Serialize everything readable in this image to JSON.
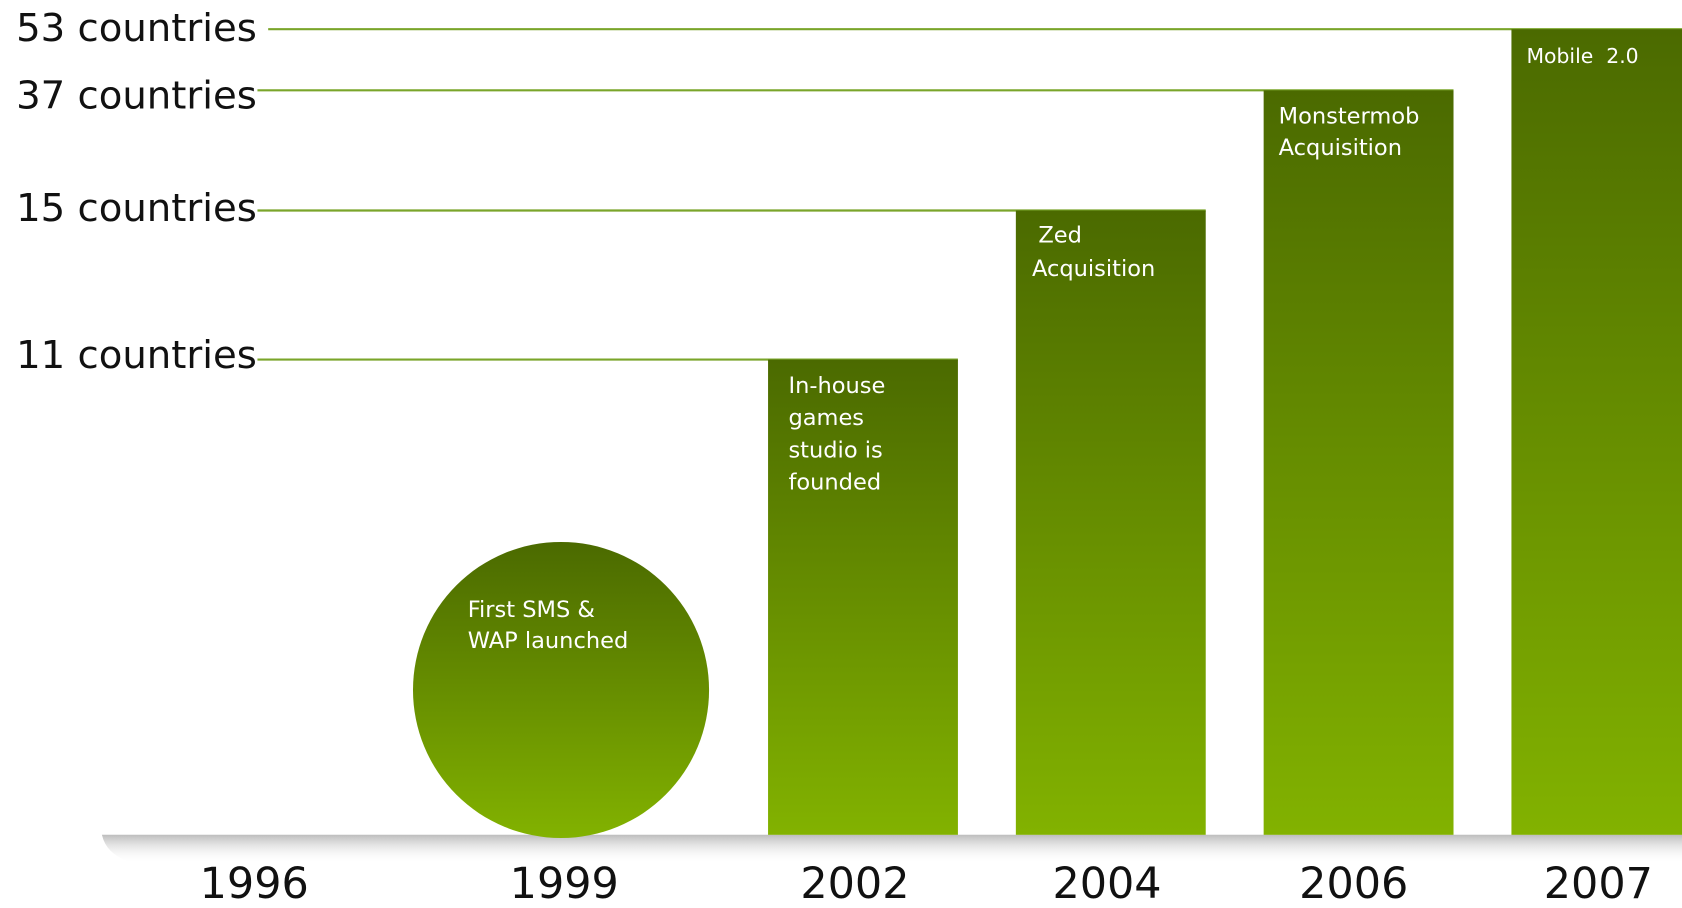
{
  "levels": [
    {
      "label": "53 countries"
    },
    {
      "label": "37 countries"
    },
    {
      "label": "15 countries"
    },
    {
      "label": "11 countries"
    }
  ],
  "milestones": [
    {
      "year": "1996"
    },
    {
      "year": "1999",
      "text": [
        "First SMS &",
        "WAP launched"
      ]
    },
    {
      "year": "2002",
      "text": [
        "In-house",
        "games",
        "studio is",
        "founded"
      ]
    },
    {
      "year": "2004",
      "text": [
        "Zed",
        "Acquisition"
      ]
    },
    {
      "year": "2006",
      "text": [
        "Monstermob",
        "Acquisition"
      ]
    },
    {
      "year": "2007",
      "text": [
        "Mobile  2.0"
      ]
    }
  ]
}
